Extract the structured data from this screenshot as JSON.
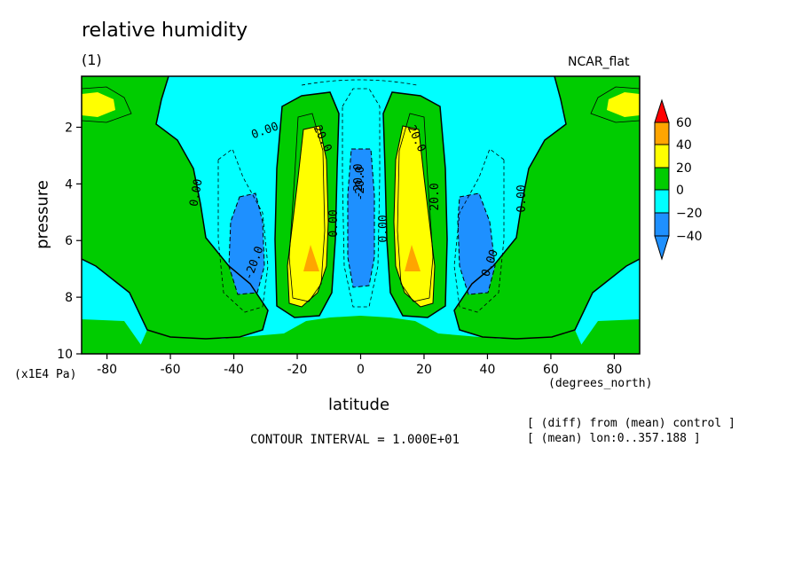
{
  "title": "relative humidity",
  "subtitle": "(1)",
  "dataset": "NCAR_flat",
  "contour_interval": "CONTOUR INTERVAL = 1.000E+01",
  "notes": [
    "[ (diff) from (mean) control ]",
    "[ (mean) lon:0..357.188 ]"
  ],
  "colors": {
    "neg40": "#1e90ff",
    "neg20": "#00ffff",
    "zero": "#00cc00",
    "pos20": "#ffff00",
    "pos40": "#ffa500",
    "pos60": "#ff0000"
  },
  "chart_data": {
    "type": "contour",
    "title": "relative humidity",
    "xlabel": "latitude",
    "xunits": "(degrees_north)",
    "ylabel": "pressure",
    "yunits": "(x1E4 Pa)",
    "xlim": [
      -88,
      88
    ],
    "ylim": [
      10,
      0.2
    ],
    "xticks": [
      -80,
      -60,
      -40,
      -20,
      0,
      20,
      40,
      60,
      80
    ],
    "yticks": [
      2,
      4,
      6,
      8,
      10
    ],
    "colorbar_levels": [
      -40,
      -20,
      0,
      20,
      40,
      60
    ],
    "colorbar_labels": [
      "60",
      "40",
      "20",
      "0",
      "−20",
      "−40"
    ],
    "contour_labels": [
      "0.00",
      "0.00",
      "20.0",
      "-20.0",
      "20.0",
      "0.00",
      "0.00",
      "20.0",
      "0.00",
      "0.00",
      "-20.0",
      "-20.0"
    ],
    "features": [
      {
        "name": "core",
        "x": -15,
        "y": 7.0,
        "value": 40
      },
      {
        "name": "core",
        "x": 17,
        "y": 7.0,
        "value": 40
      },
      {
        "name": "core",
        "x": -36,
        "y": 6.2,
        "value": -30
      },
      {
        "name": "core",
        "x": 37,
        "y": 6.2,
        "value": -30
      },
      {
        "name": "core",
        "x": 0,
        "y": 5.5,
        "value": -20
      }
    ]
  }
}
